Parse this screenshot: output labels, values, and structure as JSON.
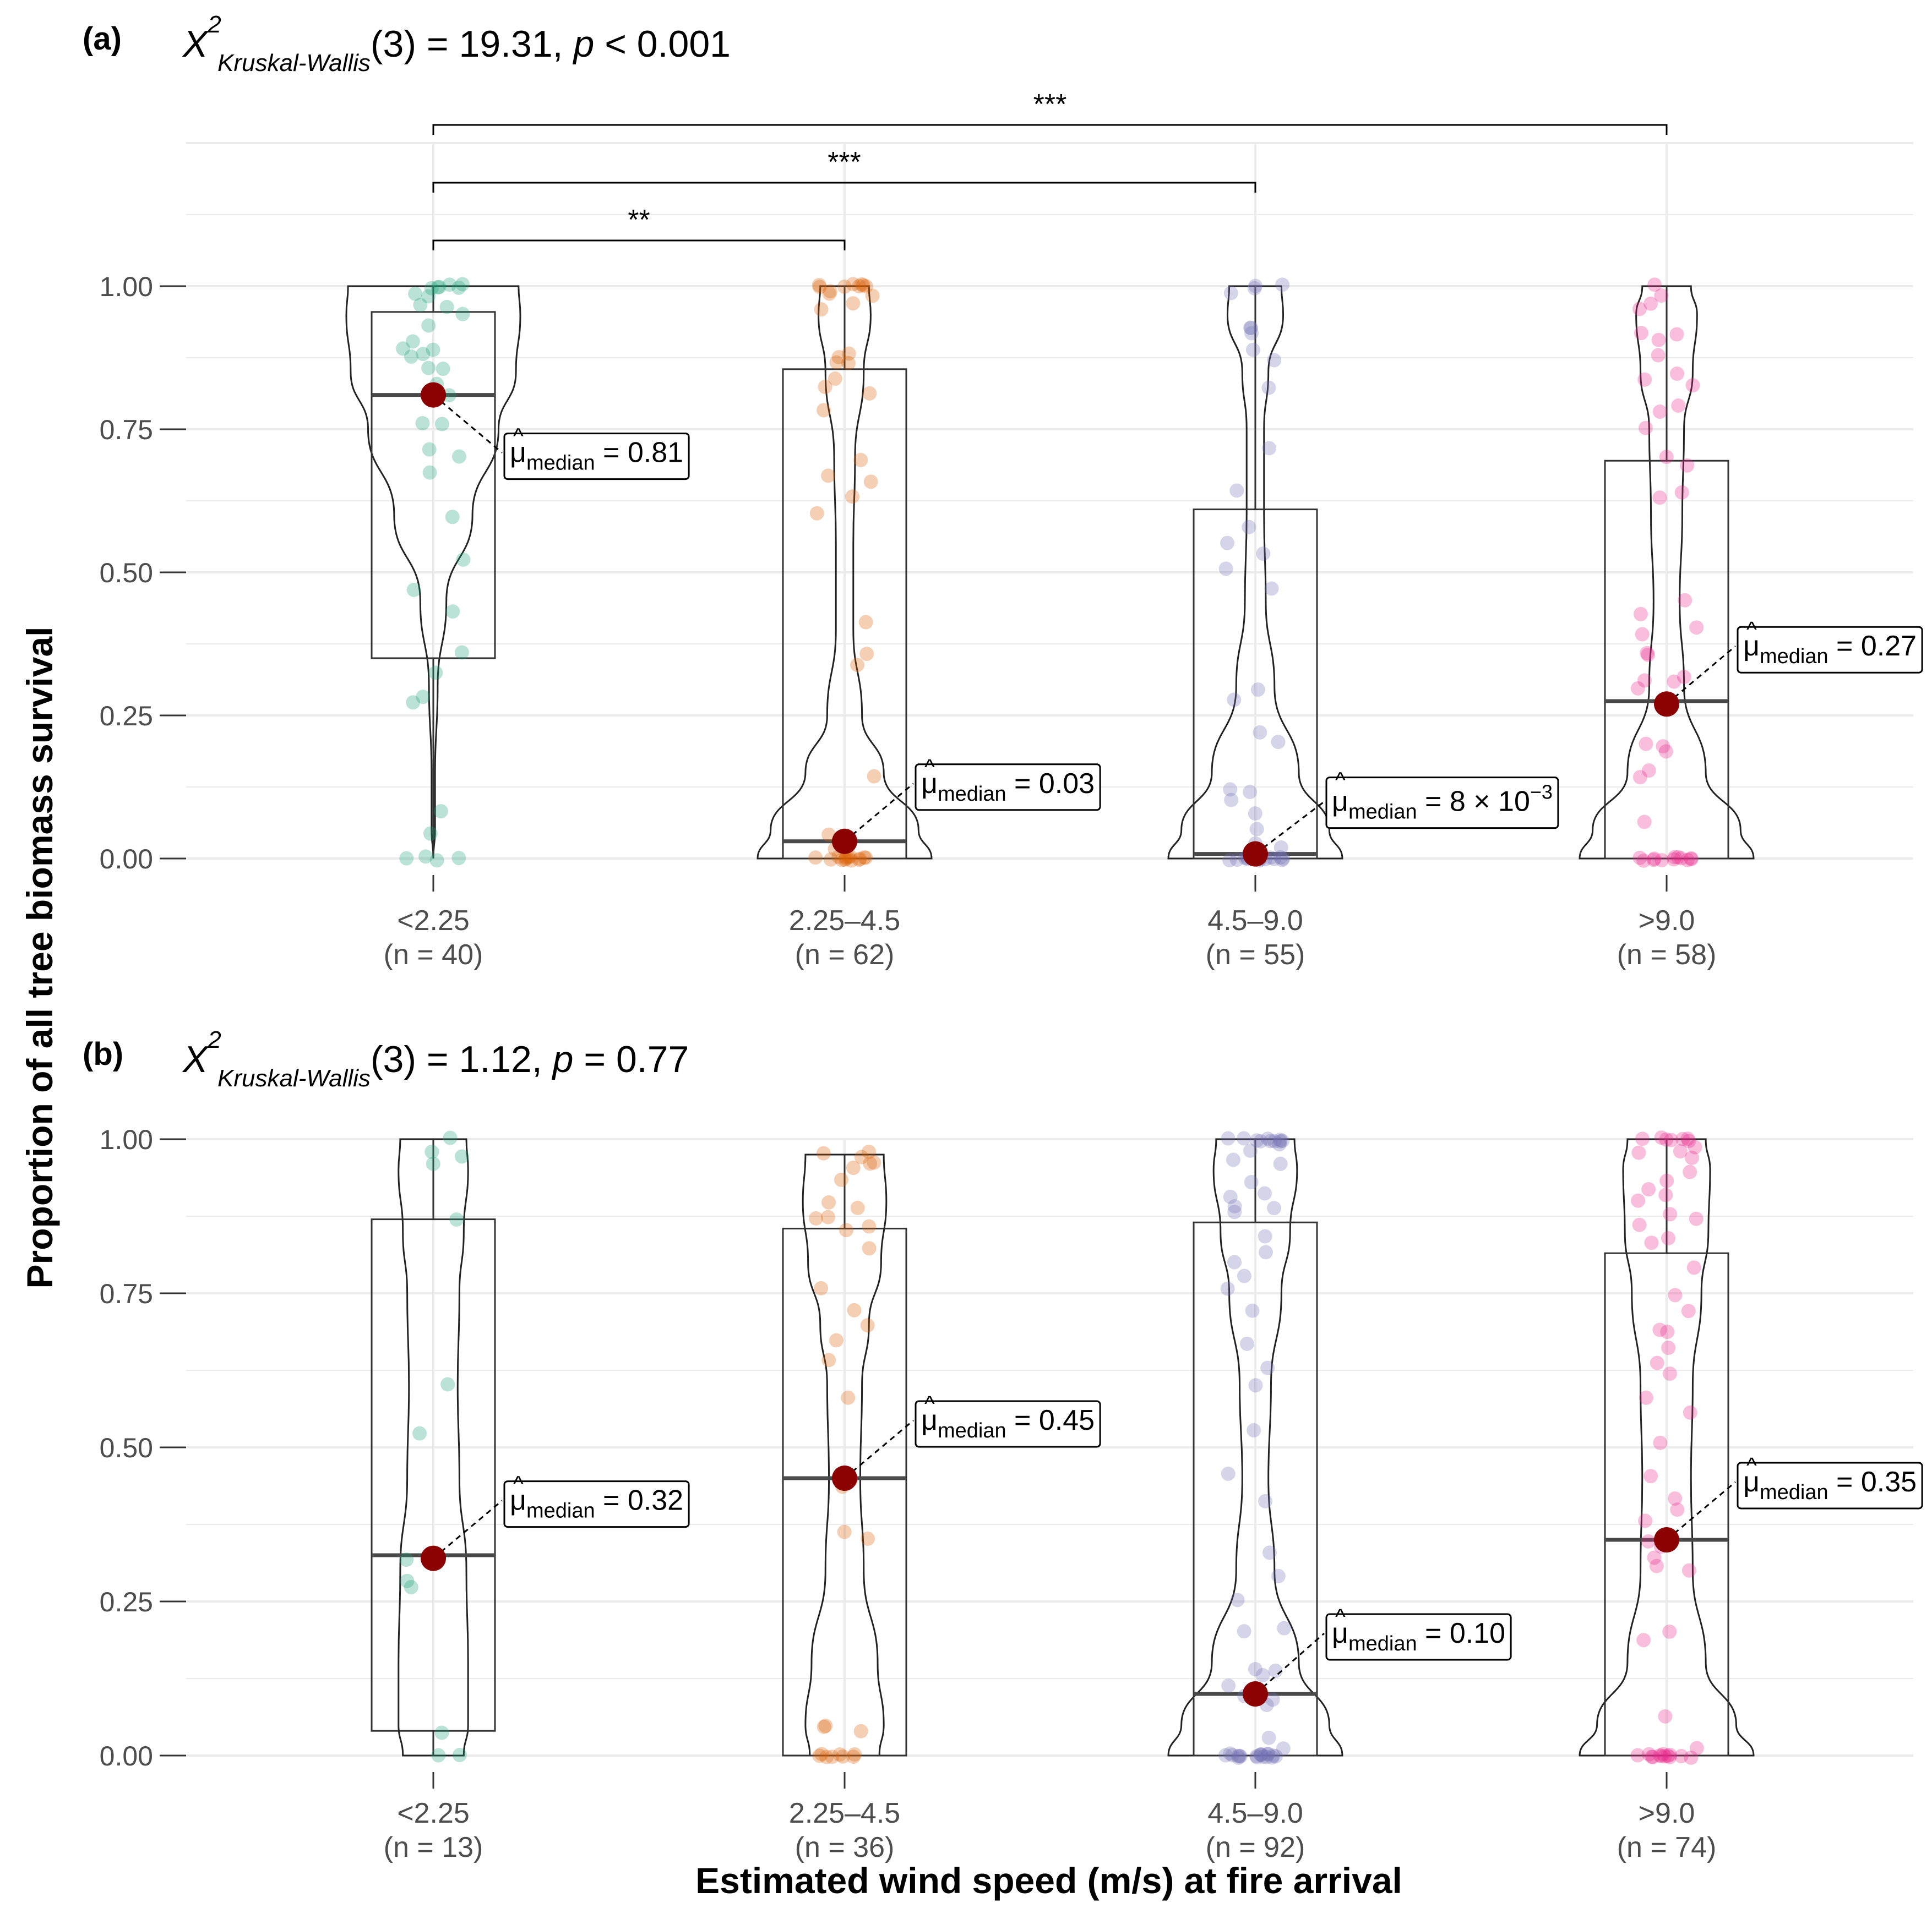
{
  "y_axis_label": "Proportion of all tree biomass survival",
  "x_axis_label": "Estimated wind speed (m/s) at fire arrival",
  "colors": {
    "group_points": [
      "#1b9e77",
      "#d95f02",
      "#7570b3",
      "#e7298a"
    ],
    "median_point": "#8b0000",
    "grid": "#ebebeb"
  },
  "chart_data": [
    {
      "type": "violin-box",
      "panel_label": "(a)",
      "test": {
        "symbol": "X",
        "sup": "2",
        "sub": "Kruskal-Wallis",
        "rest": "(3) = 19.31, ",
        "p_symbol": "p",
        "p_text": " < 0.001"
      },
      "categories": [
        "<2.25",
        "2.25–4.5",
        "4.5–9.0",
        ">9.0"
      ],
      "n_labels": [
        "(n = 40)",
        "(n = 62)",
        "(n = 55)",
        "(n = 58)"
      ],
      "ylim": [
        0,
        1.25
      ],
      "yticks": [
        0,
        0.25,
        0.5,
        0.75,
        1.0
      ],
      "ytick_labels": [
        "0.00",
        "0.25",
        "0.50",
        "0.75",
        "1.00"
      ],
      "medians": [
        0.81,
        0.03,
        0.008,
        0.27
      ],
      "median_labels": [
        "0.81",
        "0.03",
        "8 × 10",
        "0.27"
      ],
      "median_label_sup": [
        "",
        "",
        "−3",
        ""
      ],
      "mu_symbol": "μ",
      "mu_subscript": "median",
      "boxes": [
        {
          "q1": 0.35,
          "median": 0.81,
          "q3": 0.955,
          "min": 0.0,
          "max": 1.0
        },
        {
          "q1": 0.0,
          "median": 0.03,
          "q3": 0.855,
          "min": 0.0,
          "max": 1.0
        },
        {
          "q1": 0.0,
          "median": 0.008,
          "q3": 0.61,
          "min": 0.0,
          "max": 1.0
        },
        {
          "q1": 0.0,
          "median": 0.275,
          "q3": 0.695,
          "min": 0.0,
          "max": 1.0
        }
      ],
      "violin_widths": [
        [
          [
            0.0,
            0.0
          ],
          [
            0.05,
            0.02
          ],
          [
            0.15,
            0.02
          ],
          [
            0.3,
            0.05
          ],
          [
            0.45,
            0.15
          ],
          [
            0.6,
            0.45
          ],
          [
            0.75,
            0.75
          ],
          [
            0.85,
            0.95
          ],
          [
            0.95,
            1.0
          ],
          [
            1.0,
            0.98
          ]
        ],
        [
          [
            0.0,
            1.0
          ],
          [
            0.05,
            0.85
          ],
          [
            0.15,
            0.45
          ],
          [
            0.25,
            0.2
          ],
          [
            0.4,
            0.1
          ],
          [
            0.55,
            0.1
          ],
          [
            0.7,
            0.12
          ],
          [
            0.85,
            0.22
          ],
          [
            0.95,
            0.3
          ],
          [
            1.0,
            0.28
          ]
        ],
        [
          [
            0.0,
            1.0
          ],
          [
            0.05,
            0.85
          ],
          [
            0.15,
            0.5
          ],
          [
            0.3,
            0.22
          ],
          [
            0.45,
            0.12
          ],
          [
            0.6,
            0.1
          ],
          [
            0.75,
            0.1
          ],
          [
            0.85,
            0.15
          ],
          [
            0.95,
            0.32
          ],
          [
            1.0,
            0.3
          ]
        ],
        [
          [
            0.0,
            1.0
          ],
          [
            0.05,
            0.85
          ],
          [
            0.15,
            0.45
          ],
          [
            0.3,
            0.2
          ],
          [
            0.45,
            0.15
          ],
          [
            0.6,
            0.18
          ],
          [
            0.75,
            0.2
          ],
          [
            0.85,
            0.3
          ],
          [
            0.95,
            0.35
          ],
          [
            1.0,
            0.28
          ]
        ]
      ],
      "comparisons": [
        {
          "from": 0,
          "to": 1,
          "label": "**"
        },
        {
          "from": 0,
          "to": 2,
          "label": "***"
        },
        {
          "from": 0,
          "to": 3,
          "label": "***"
        }
      ],
      "points": [
        [
          0,
          0,
          0,
          0,
          0.04,
          0.085,
          0.27,
          0.28,
          0.325,
          0.36,
          0.435,
          0.47,
          0.52,
          0.6,
          0.675,
          0.7,
          0.715,
          0.76,
          0.76,
          0.81,
          0.83,
          0.855,
          0.86,
          0.875,
          0.88,
          0.89,
          0.89,
          0.9,
          0.935,
          0.95,
          0.96,
          0.97,
          0.98,
          0.99,
          1,
          1,
          1,
          1,
          1,
          1
        ],
        [
          0,
          0,
          0,
          0,
          0,
          0,
          0,
          0,
          0,
          0,
          0,
          0,
          0,
          0,
          0.02,
          0.03,
          0.04,
          0.145,
          0.335,
          0.355,
          0.415,
          0.6,
          0.635,
          0.66,
          0.665,
          0.7,
          0.785,
          0.81,
          0.825,
          0.84,
          0.865,
          0.87,
          0.875,
          0.88,
          0.96,
          0.97,
          0.98,
          0.99,
          0.99,
          1,
          1,
          1,
          1,
          1,
          1,
          1,
          1
        ],
        [
          0,
          0,
          0,
          0,
          0,
          0,
          0,
          0,
          0,
          0,
          0,
          0,
          0,
          0,
          0,
          0,
          0.01,
          0.02,
          0.03,
          0.05,
          0.08,
          0.1,
          0.12,
          0.12,
          0.2,
          0.22,
          0.28,
          0.295,
          0.47,
          0.51,
          0.53,
          0.55,
          0.58,
          0.64,
          0.72,
          0.825,
          0.87,
          0.89,
          0.92,
          0.925,
          0.93,
          0.99,
          1,
          1,
          1
        ],
        [
          0,
          0,
          0,
          0,
          0,
          0,
          0,
          0,
          0,
          0,
          0,
          0,
          0.065,
          0.14,
          0.15,
          0.19,
          0.195,
          0.2,
          0.3,
          0.31,
          0.31,
          0.32,
          0.355,
          0.36,
          0.395,
          0.4,
          0.43,
          0.455,
          0.63,
          0.64,
          0.69,
          0.7,
          0.755,
          0.78,
          0.79,
          0.83,
          0.835,
          0.845,
          0.88,
          0.905,
          0.915,
          0.92,
          0.96,
          0.97,
          0.985,
          1
        ]
      ]
    },
    {
      "type": "violin-box",
      "panel_label": "(b)",
      "test": {
        "symbol": "X",
        "sup": "2",
        "sub": "Kruskal-Wallis",
        "rest": "(3) = 1.12, ",
        "p_symbol": "p",
        "p_text": " = 0.77"
      },
      "categories": [
        "<2.25",
        "2.25–4.5",
        "4.5–9.0",
        ">9.0"
      ],
      "n_labels": [
        "(n = 13)",
        "(n = 36)",
        "(n = 92)",
        "(n = 74)"
      ],
      "ylim": [
        0,
        1.0
      ],
      "yticks": [
        0,
        0.25,
        0.5,
        0.75,
        1.0
      ],
      "ytick_labels": [
        "0.00",
        "0.25",
        "0.50",
        "0.75",
        "1.00"
      ],
      "medians": [
        0.32,
        0.45,
        0.1,
        0.35
      ],
      "median_labels": [
        "0.32",
        "0.45",
        "0.10",
        "0.35"
      ],
      "median_label_sup": [
        "",
        "",
        "",
        ""
      ],
      "mu_symbol": "μ",
      "mu_subscript": "median",
      "boxes": [
        {
          "q1": 0.04,
          "median": 0.325,
          "q3": 0.87,
          "min": 0.0,
          "max": 1.0
        },
        {
          "q1": 0.0,
          "median": 0.45,
          "q3": 0.855,
          "min": 0.0,
          "max": 0.975
        },
        {
          "q1": 0.0,
          "median": 0.1,
          "q3": 0.865,
          "min": 0.0,
          "max": 1.0
        },
        {
          "q1": 0.0,
          "median": 0.35,
          "q3": 0.815,
          "min": 0.0,
          "max": 1.0
        }
      ],
      "violin_widths": [
        [
          [
            0.0,
            0.35
          ],
          [
            0.05,
            0.4
          ],
          [
            0.15,
            0.4
          ],
          [
            0.3,
            0.38
          ],
          [
            0.45,
            0.3
          ],
          [
            0.6,
            0.28
          ],
          [
            0.75,
            0.3
          ],
          [
            0.85,
            0.35
          ],
          [
            0.95,
            0.4
          ],
          [
            1.0,
            0.38
          ]
        ],
        [
          [
            0.0,
            0.4
          ],
          [
            0.05,
            0.45
          ],
          [
            0.15,
            0.38
          ],
          [
            0.3,
            0.22
          ],
          [
            0.45,
            0.18
          ],
          [
            0.6,
            0.2
          ],
          [
            0.7,
            0.28
          ],
          [
            0.8,
            0.42
          ],
          [
            0.9,
            0.48
          ],
          [
            0.975,
            0.45
          ]
        ],
        [
          [
            0.0,
            1.0
          ],
          [
            0.05,
            0.85
          ],
          [
            0.15,
            0.5
          ],
          [
            0.3,
            0.22
          ],
          [
            0.45,
            0.15
          ],
          [
            0.6,
            0.18
          ],
          [
            0.75,
            0.3
          ],
          [
            0.85,
            0.4
          ],
          [
            0.95,
            0.48
          ],
          [
            1.0,
            0.45
          ]
        ],
        [
          [
            0.0,
            1.0
          ],
          [
            0.05,
            0.8
          ],
          [
            0.15,
            0.45
          ],
          [
            0.3,
            0.3
          ],
          [
            0.45,
            0.28
          ],
          [
            0.6,
            0.3
          ],
          [
            0.75,
            0.4
          ],
          [
            0.85,
            0.48
          ],
          [
            0.95,
            0.5
          ],
          [
            1.0,
            0.45
          ]
        ]
      ],
      "comparisons": [],
      "points": [
        [
          0,
          0,
          0.04,
          0.27,
          0.28,
          0.32,
          0.52,
          0.6,
          0.87,
          0.96,
          0.975,
          0.98,
          1
        ],
        [
          0,
          0,
          0,
          0,
          0,
          0,
          0,
          0,
          0.04,
          0.045,
          0.045,
          0.355,
          0.36,
          0.435,
          0.45,
          0.58,
          0.64,
          0.675,
          0.695,
          0.72,
          0.76,
          0.82,
          0.855,
          0.86,
          0.87,
          0.875,
          0.89,
          0.895,
          0.935,
          0.955,
          0.96,
          0.965,
          0.97,
          0.975,
          0.98
        ],
        [
          0,
          0,
          0,
          0,
          0,
          0,
          0,
          0,
          0,
          0,
          0,
          0,
          0,
          0,
          0,
          0,
          0,
          0,
          0,
          0.01,
          0.03,
          0.08,
          0.09,
          0.1,
          0.11,
          0.13,
          0.14,
          0.14,
          0.2,
          0.21,
          0.25,
          0.29,
          0.33,
          0.41,
          0.46,
          0.53,
          0.6,
          0.63,
          0.67,
          0.72,
          0.76,
          0.78,
          0.8,
          0.82,
          0.84,
          0.88,
          0.89,
          0.89,
          0.91,
          0.91,
          0.93,
          0.96,
          0.97,
          0.98,
          0.99,
          1,
          1,
          1,
          1,
          1,
          1,
          1,
          1,
          1,
          1
        ],
        [
          0,
          0,
          0,
          0,
          0,
          0,
          0,
          0,
          0,
          0,
          0,
          0,
          0,
          0.01,
          0.06,
          0.19,
          0.2,
          0.3,
          0.31,
          0.32,
          0.34,
          0.35,
          0.38,
          0.4,
          0.42,
          0.45,
          0.51,
          0.56,
          0.58,
          0.62,
          0.64,
          0.66,
          0.69,
          0.69,
          0.72,
          0.75,
          0.79,
          0.83,
          0.84,
          0.86,
          0.87,
          0.88,
          0.9,
          0.91,
          0.92,
          0.93,
          0.95,
          0.97,
          0.98,
          0.98,
          0.99,
          1,
          1,
          1,
          1,
          1,
          1,
          1
        ]
      ]
    }
  ]
}
